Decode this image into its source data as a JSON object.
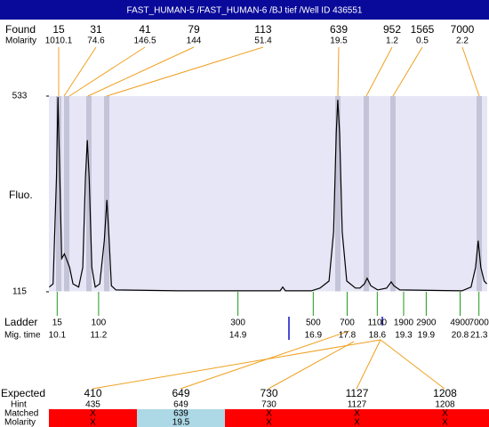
{
  "title": "FAST_HUMAN-5 /FAST_HUMAN-6 /BJ tief /Well ID 436551",
  "found": {
    "label": "Found",
    "sublabel": "Molarity",
    "peaks": [
      {
        "size": "15",
        "molarity": "1010.1"
      },
      {
        "size": "31",
        "molarity": "74.6"
      },
      {
        "size": "41",
        "molarity": "146.5"
      },
      {
        "size": "79",
        "molarity": "144"
      },
      {
        "size": "113",
        "molarity": "51.4"
      },
      {
        "size": "639",
        "molarity": "19.5"
      },
      {
        "size": "952",
        "molarity": "1.2"
      },
      {
        "size": "1565",
        "molarity": "0.5"
      },
      {
        "size": "7000",
        "molarity": "2.2"
      }
    ]
  },
  "chart_data": {
    "type": "line",
    "y_label": "Fluo.",
    "color": "#000000",
    "x": [
      9.89,
      9.99,
      10.08,
      10.12,
      10.17,
      10.22,
      10.29,
      10.36,
      10.43,
      10.52,
      10.67,
      10.78,
      10.85,
      10.9,
      10.95,
      11.02,
      11.11,
      11.23,
      11.35,
      11.42,
      11.47,
      11.54,
      11.66,
      13.31,
      15.67,
      16.02,
      16.09,
      16.16,
      16.85,
      17.08,
      17.32,
      17.44,
      17.51,
      17.55,
      17.6,
      17.67,
      17.79,
      18.02,
      18.14,
      18.26,
      18.33,
      18.43,
      18.61,
      18.85,
      18.97,
      19.04,
      19.2,
      20.85,
      21.09,
      21.21,
      21.28,
      21.35,
      21.44,
      21.51
    ],
    "values": [
      125,
      132,
      358,
      531,
      358,
      186,
      196,
      182,
      167,
      132,
      125,
      167,
      358,
      439,
      358,
      167,
      125,
      132,
      224,
      311,
      243,
      128,
      119,
      117,
      117,
      117,
      125,
      117,
      117,
      123,
      138,
      243,
      454,
      525,
      454,
      243,
      138,
      123,
      123,
      132,
      144,
      128,
      119,
      123,
      136,
      128,
      119,
      117,
      125,
      167,
      224,
      167,
      138,
      132
    ],
    "xlim": [
      9.88,
      21.52
    ],
    "ylim": [
      115,
      533
    ],
    "yticks": [
      115,
      533
    ]
  },
  "ladder": {
    "label": "Ladder",
    "sublabel": "Mig. time",
    "sizes": [
      "15",
      "100",
      "300",
      "500",
      "700",
      "1100",
      "1900",
      "2900",
      "4900",
      "7000"
    ],
    "mig_times": [
      10.1,
      11.2,
      14.9,
      16.9,
      17.8,
      18.6,
      19.3,
      19.9,
      20.8,
      21.3
    ]
  },
  "expected": {
    "label": "Expected",
    "hint_label": "Hint",
    "matched_label": "Matched",
    "molarity_label": "Molarity",
    "columns": [
      {
        "expected": "410",
        "hint": "435",
        "matched": "X",
        "molarity": "X",
        "color": "#ff0000"
      },
      {
        "expected": "649",
        "hint": "649",
        "matched": "639",
        "molarity": "19.5",
        "color": "#add8e6"
      },
      {
        "expected": "730",
        "hint": "730",
        "matched": "X",
        "molarity": "X",
        "color": "#ff0000"
      },
      {
        "expected": "1127",
        "hint": "1127",
        "matched": "X",
        "molarity": "X",
        "color": "#ff0000"
      },
      {
        "expected": "1208",
        "hint": "1208",
        "matched": "X",
        "molarity": "X",
        "color": "#ff0000"
      }
    ]
  }
}
